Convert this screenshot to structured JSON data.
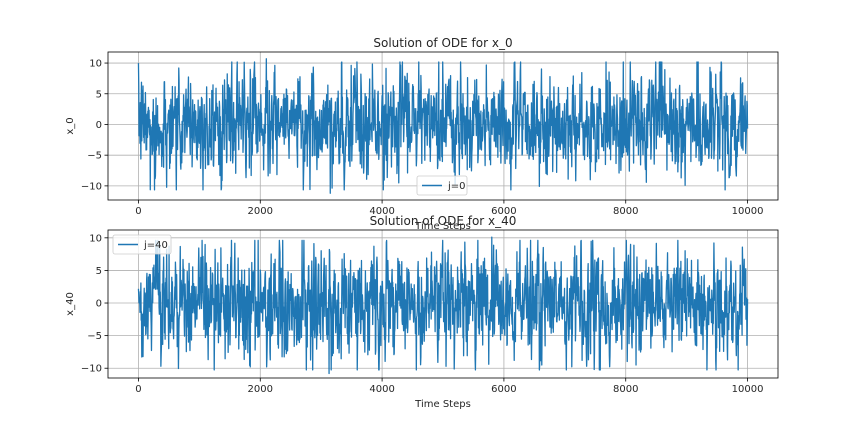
{
  "chart_data": [
    {
      "type": "line",
      "title": "Solution of ODE for x_0",
      "xlabel": "Time Steps",
      "ylabel": "x_0",
      "xlim": [
        -500,
        10500
      ],
      "ylim": [
        -12.3,
        11.8
      ],
      "xticks": [
        0,
        2000,
        4000,
        6000,
        8000,
        10000
      ],
      "yticks": [
        -10,
        -5,
        0,
        5,
        10
      ],
      "xtick_labels": [
        "0",
        "2000",
        "4000",
        "6000",
        "8000",
        "10000"
      ],
      "ytick_labels": [
        "−10",
        "−5",
        "0",
        "5",
        "10"
      ],
      "grid": true,
      "legend_position": "lower-center",
      "series": [
        {
          "name": "j=0",
          "color": "#1f77b4",
          "n_points": 10000,
          "x_range": [
            0,
            10000
          ],
          "y_min": -11.2,
          "y_max": 10.7,
          "notable_extremes": [
            {
              "x": 2100,
              "y": 10.7
            },
            {
              "x": 3150,
              "y": -11.2
            }
          ]
        }
      ]
    },
    {
      "type": "line",
      "title": "Solution of ODE for x_40",
      "xlabel": "Time Steps",
      "ylabel": "x_40",
      "xlim": [
        -500,
        10500
      ],
      "ylim": [
        -11.5,
        11.2
      ],
      "xticks": [
        0,
        2000,
        4000,
        6000,
        8000,
        10000
      ],
      "yticks": [
        -10,
        -5,
        0,
        5,
        10
      ],
      "xtick_labels": [
        "0",
        "2000",
        "4000",
        "6000",
        "8000",
        "10000"
      ],
      "ytick_labels": [
        "−10",
        "−5",
        "0",
        "5",
        "10"
      ],
      "grid": true,
      "legend_position": "upper-left",
      "series": [
        {
          "name": "j=40",
          "color": "#1f77b4",
          "n_points": 10000,
          "x_range": [
            0,
            10000
          ],
          "y_min": -10.8,
          "y_max": 10.1,
          "notable_extremes": [
            {
              "x": 5800,
              "y": 10.1
            },
            {
              "x": 3130,
              "y": -10.8
            }
          ]
        }
      ]
    }
  ]
}
